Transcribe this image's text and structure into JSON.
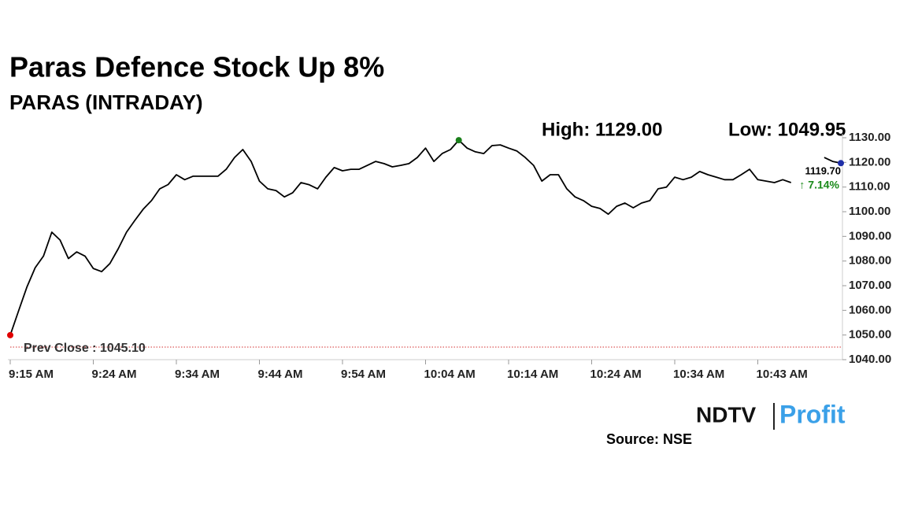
{
  "chart_data": {
    "type": "line",
    "title": "Paras Defence Stock Up 8%",
    "subtitle": "PARAS (INTRADAY)",
    "annotations": {
      "high": "High: 1129.00",
      "low": "Low: 1049.95",
      "last": "1119.70",
      "change": "↑ 7.14%"
    },
    "source": "Source: NSE",
    "logo": {
      "left": "NDTV",
      "right": "Profit"
    },
    "prev_close": {
      "value": 1045.1,
      "label": "Prev Close : 1045.10",
      "color": "#d32f2f"
    },
    "categories": [
      "9:15 AM",
      null,
      null,
      null,
      null,
      null,
      null,
      null,
      null,
      null,
      "9:24 AM",
      null,
      null,
      null,
      null,
      null,
      null,
      null,
      null,
      null,
      "9:34 AM",
      null,
      null,
      null,
      null,
      null,
      null,
      null,
      null,
      null,
      "9:44 AM",
      null,
      null,
      null,
      null,
      null,
      null,
      null,
      null,
      null,
      "9:54 AM",
      null,
      null,
      null,
      null,
      null,
      null,
      null,
      null,
      null,
      "10:04 AM",
      null,
      null,
      null,
      null,
      null,
      null,
      null,
      null,
      null,
      "10:14 AM",
      null,
      null,
      null,
      null,
      null,
      null,
      null,
      null,
      null,
      "10:24 AM",
      null,
      null,
      null,
      null,
      null,
      null,
      null,
      null,
      null,
      "10:34 AM",
      null,
      null,
      null,
      null,
      null,
      null,
      null,
      null,
      null,
      "10:43 AM",
      null,
      null,
      null,
      null,
      null,
      null,
      null,
      null,
      null,
      null
    ],
    "series": [
      {
        "name": "PARAS",
        "color": "#000000",
        "values": [
          1049.95,
          1059.8,
          1069.4,
          1077.3,
          1082,
          1091.7,
          1088.5,
          1081,
          1083.7,
          1082,
          1077,
          1075.7,
          1079,
          1085,
          1091.7,
          1096.5,
          1101,
          1104.5,
          1109.3,
          1111,
          1115,
          1113,
          1114.4,
          1114.4,
          1114.4,
          1114.4,
          1117.2,
          1122,
          1125.2,
          1120.4,
          1112.4,
          1109.3,
          1108.6,
          1106,
          1107.7,
          1111.8,
          1110.9,
          1109.3,
          1114,
          1117.9,
          1116.6,
          1117.2,
          1117.2,
          1118.8,
          1120.4,
          1119.5,
          1118.2,
          1118.8,
          1119.5,
          1122,
          1125.8,
          1120.4,
          1123.6,
          1125.2,
          1129,
          1125.8,
          1124.3,
          1123.6,
          1126.8,
          1127.1,
          1125.8,
          1124.6,
          1122,
          1118.8,
          1112.4,
          1115,
          1115,
          1109.3,
          1106,
          1104.5,
          1102.2,
          1101.3,
          1099,
          1102.2,
          1103.5,
          1101.6,
          1103.5,
          1104.5,
          1109.3,
          1110,
          1114,
          1113,
          1114,
          1116.3,
          1115,
          1114,
          1113,
          1113,
          1115,
          1117.2,
          1113,
          1112.4,
          1111.8,
          1113,
          1111.8,
          null,
          null,
          null,
          1122,
          1120.4,
          1119.7
        ]
      }
    ],
    "low_color": "#e00000",
    "high_color": "#1a7f1a",
    "last_color": "#1f2fa8",
    "change_color": "#1a8a1a",
    "ylim": [
      1040,
      1130
    ],
    "yticks": [
      {
        "value": 1040,
        "label": "1040.00"
      },
      {
        "value": 1050,
        "label": "1050.00"
      },
      {
        "value": 1060,
        "label": "1060.00"
      },
      {
        "value": 1070,
        "label": "1070.00"
      },
      {
        "value": 1080,
        "label": "1080.00"
      },
      {
        "value": 1090,
        "label": "1090.00"
      },
      {
        "value": 1100,
        "label": "1100.00"
      },
      {
        "value": 1110,
        "label": "1110.00"
      },
      {
        "value": 1120,
        "label": "1120.00"
      },
      {
        "value": 1130,
        "label": "1130.00"
      }
    ],
    "grid": false
  }
}
